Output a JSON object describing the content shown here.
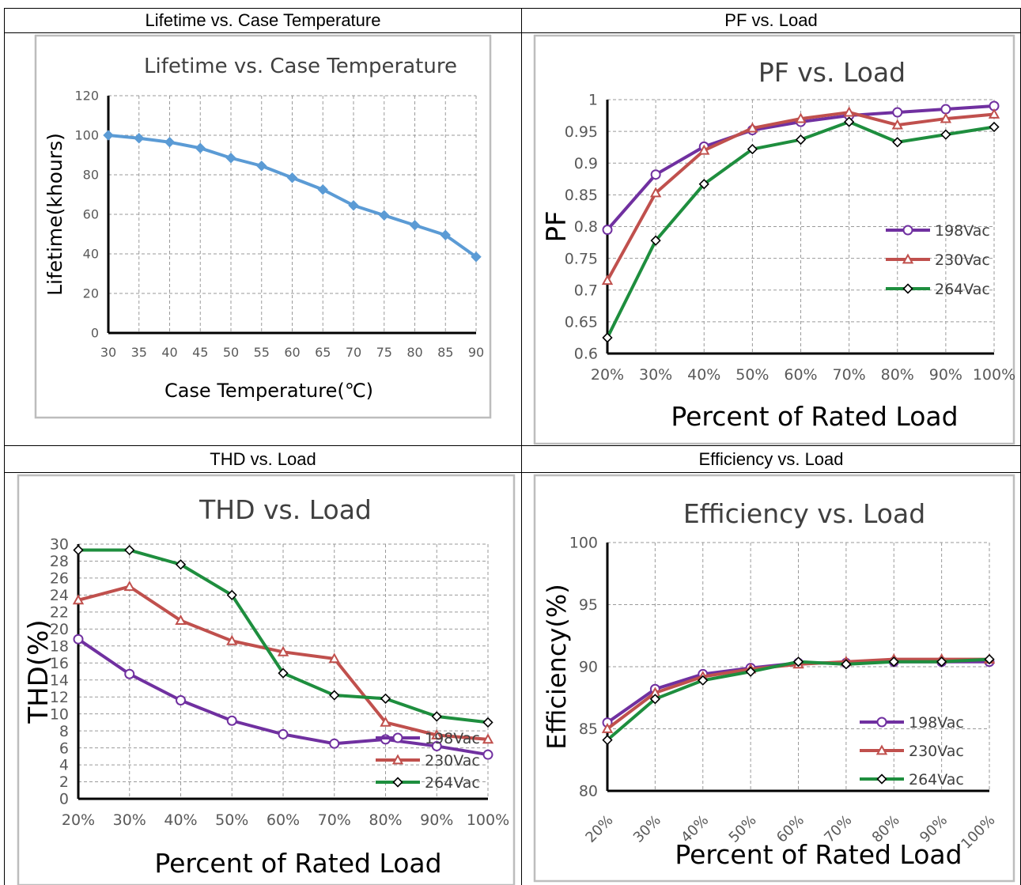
{
  "cells": [
    {
      "header": "Lifetime vs. Case Temperature"
    },
    {
      "header": "PF vs. Load"
    },
    {
      "header": "THD vs. Load"
    },
    {
      "header": "Efficiency vs. Load"
    }
  ],
  "chart_data": [
    {
      "type": "line",
      "title": "Lifetime vs. Case Temperature",
      "xlabel": "Case Temperature(℃)",
      "ylabel": "Lifetime(khours)",
      "x": [
        30,
        35,
        40,
        45,
        50,
        55,
        60,
        65,
        70,
        75,
        80,
        85,
        90
      ],
      "xlim": [
        30,
        90
      ],
      "ylim": [
        0,
        120
      ],
      "yticks": [
        0,
        20,
        40,
        60,
        80,
        100,
        120
      ],
      "grid": true,
      "series": [
        {
          "values": [
            100,
            98.5,
            96.5,
            93.5,
            88.5,
            84.5,
            78.5,
            72.5,
            64.5,
            59.5,
            54.5,
            49.5,
            38.5
          ],
          "color": "#5b9bd5",
          "marker": "diamond"
        }
      ]
    },
    {
      "type": "line",
      "title": "PF vs. Load",
      "xlabel": "Percent of Rated Load",
      "ylabel": "PF",
      "categories": [
        "20%",
        "30%",
        "40%",
        "50%",
        "60%",
        "70%",
        "80%",
        "90%",
        "100%"
      ],
      "ylim": [
        0.6,
        1
      ],
      "yticks": [
        "0.6",
        "0.65",
        "0.7",
        "0.75",
        "0.8",
        "0.85",
        "0.9",
        "0.95",
        "1"
      ],
      "grid": true,
      "legend": "right",
      "series": [
        {
          "name": "198Vac",
          "values": [
            0.795,
            0.882,
            0.926,
            0.952,
            0.965,
            0.975,
            0.98,
            0.985,
            0.99
          ],
          "color": "#7030a0",
          "marker": "circle"
        },
        {
          "name": "230Vac",
          "values": [
            0.715,
            0.853,
            0.92,
            0.955,
            0.97,
            0.98,
            0.96,
            0.97,
            0.977
          ],
          "color": "#c0504d",
          "marker": "triangle"
        },
        {
          "name": "264Vac",
          "values": [
            0.625,
            0.778,
            0.867,
            0.922,
            0.937,
            0.965,
            0.933,
            0.945,
            0.957
          ],
          "color": "#1e8e3e",
          "marker": "diamond"
        }
      ]
    },
    {
      "type": "line",
      "title": "THD vs. Load",
      "xlabel": "Percent of Rated Load",
      "ylabel": "THD(%)",
      "categories": [
        "20%",
        "30%",
        "40%",
        "50%",
        "60%",
        "70%",
        "80%",
        "90%",
        "100%"
      ],
      "ylim": [
        0,
        30
      ],
      "yticks": [
        "0",
        "2",
        "4",
        "6",
        "8",
        "10",
        "12",
        "14",
        "16",
        "18",
        "20",
        "22",
        "24",
        "26",
        "28",
        "30"
      ],
      "grid": true,
      "legend": "bottom-right",
      "series": [
        {
          "name": "198Vac",
          "values": [
            18.8,
            14.7,
            11.6,
            9.2,
            7.6,
            6.5,
            7.0,
            6.2,
            5.2
          ],
          "color": "#7030a0",
          "marker": "circle"
        },
        {
          "name": "230Vac",
          "values": [
            23.4,
            25.0,
            21.0,
            18.6,
            17.3,
            16.5,
            9.0,
            7.5,
            7.0
          ],
          "color": "#c0504d",
          "marker": "triangle"
        },
        {
          "name": "264Vac",
          "values": [
            29.3,
            29.3,
            27.6,
            24.0,
            14.8,
            12.2,
            11.8,
            9.7,
            9.0
          ],
          "color": "#1e8e3e",
          "marker": "diamond"
        }
      ]
    },
    {
      "type": "line",
      "title": "Efficiency vs. Load",
      "xlabel": "Percent of Rated Load",
      "ylabel": "Efficiency(%)",
      "categories": [
        "20%",
        "30%",
        "40%",
        "50%",
        "60%",
        "70%",
        "80%",
        "90%",
        "100%"
      ],
      "ylim": [
        80,
        100
      ],
      "yticks": [
        "80",
        "85",
        "90",
        "95",
        "100"
      ],
      "grid": true,
      "legend": "right",
      "series": [
        {
          "name": "198Vac",
          "values": [
            85.5,
            88.2,
            89.4,
            89.9,
            90.3,
            90.3,
            90.4,
            90.4,
            90.4
          ],
          "color": "#7030a0",
          "marker": "circle"
        },
        {
          "name": "230Vac",
          "values": [
            85.0,
            87.9,
            89.2,
            89.8,
            90.2,
            90.4,
            90.6,
            90.6,
            90.6
          ],
          "color": "#c0504d",
          "marker": "triangle"
        },
        {
          "name": "264Vac",
          "values": [
            84.1,
            87.4,
            88.9,
            89.6,
            90.4,
            90.2,
            90.4,
            90.4,
            90.6
          ],
          "color": "#1e8e3e",
          "marker": "diamond"
        }
      ]
    }
  ]
}
